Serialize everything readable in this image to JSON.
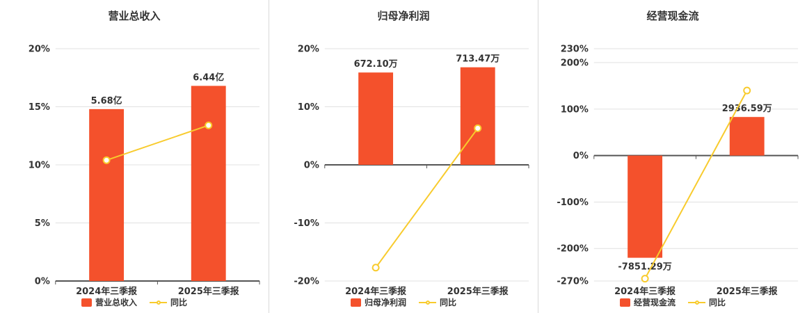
{
  "colors": {
    "bar": "#f4512c",
    "line": "#f8cb2d",
    "axis": "#555555",
    "grid": "#e0e0e0",
    "text": "#333333",
    "divider": "#d9d9d9",
    "background": "#ffffff"
  },
  "chart_data": [
    {
      "type": "bar",
      "title": "营业总收入",
      "categories": [
        "2024年三季报",
        "2025年三季报"
      ],
      "bar_series": {
        "name": "营业总收入",
        "value_labels": [
          "5.68亿",
          "6.44亿"
        ],
        "values_axis_pct": [
          14.8,
          16.8
        ]
      },
      "line_series": {
        "name": "同比",
        "values_pct": [
          10.4,
          13.4
        ]
      },
      "y_axis": {
        "min": 0,
        "max": 20,
        "ticks": [
          {
            "value": 20,
            "label": "20%"
          },
          {
            "value": 15,
            "label": "15%"
          },
          {
            "value": 10,
            "label": "10%"
          },
          {
            "value": 5,
            "label": "5%"
          },
          {
            "value": 0,
            "label": "0%"
          }
        ]
      }
    },
    {
      "type": "bar",
      "title": "归母净利润",
      "categories": [
        "2024年三季报",
        "2025年三季报"
      ],
      "bar_series": {
        "name": "归母净利润",
        "value_labels": [
          "672.10万",
          "713.47万"
        ],
        "values_axis_pct": [
          15.9,
          16.8
        ]
      },
      "line_series": {
        "name": "同比",
        "values_pct": [
          -17.7,
          6.3
        ]
      },
      "y_axis": {
        "min": -20,
        "max": 20,
        "ticks": [
          {
            "value": 20,
            "label": "20%"
          },
          {
            "value": 10,
            "label": "10%"
          },
          {
            "value": 0,
            "label": "0%"
          },
          {
            "value": -10,
            "label": "-10%"
          },
          {
            "value": -20,
            "label": "-20%"
          }
        ]
      }
    },
    {
      "type": "bar",
      "title": "经营现金流",
      "categories": [
        "2024年三季报",
        "2025年三季报"
      ],
      "bar_series": {
        "name": "经营现金流",
        "value_labels": [
          "-7851.29万",
          "2936.59万"
        ],
        "values_axis_pct": [
          -220,
          83
        ]
      },
      "line_series": {
        "name": "同比",
        "values_pct": [
          -265,
          140
        ]
      },
      "y_axis": {
        "min": -270,
        "max": 230,
        "ticks": [
          {
            "value": 230,
            "label": "230%"
          },
          {
            "value": 200,
            "label": "200%"
          },
          {
            "value": 100,
            "label": "100%"
          },
          {
            "value": 0,
            "label": "0%"
          },
          {
            "value": -100,
            "label": "-100%"
          },
          {
            "value": -200,
            "label": "-200%"
          },
          {
            "value": -270,
            "label": "-270%"
          }
        ]
      }
    }
  ]
}
